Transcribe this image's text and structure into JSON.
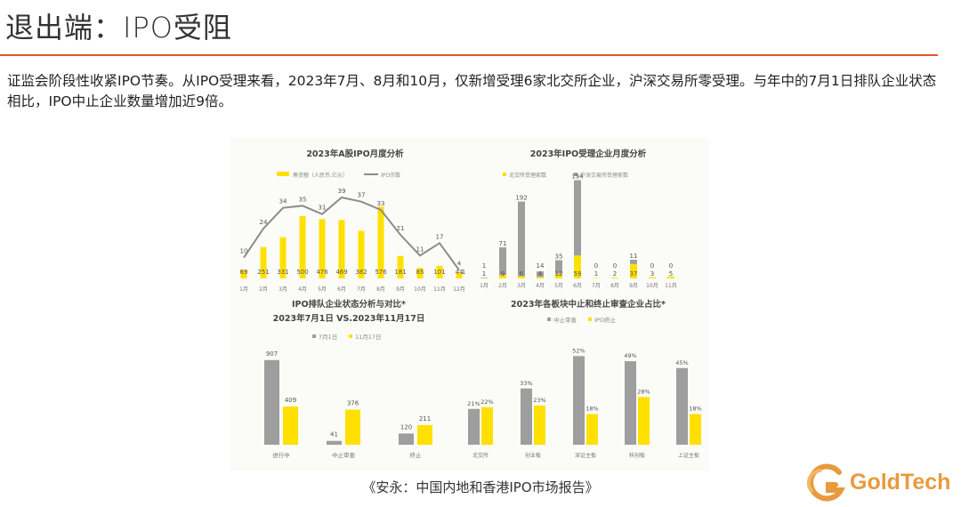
{
  "header": {
    "title": "退出端：IPO受阻",
    "paragraph": "证监会阶段性收紧IPO节奏。从IPO受理来看，2023年7月、8月和10月，仅新增受理6家北交所企业，沪深交易所零受理。与年中的7月1日排队企业状态相比，IPO中止企业数量增加近9倍。"
  },
  "caption": "《安永：中国内地和香港IPO市场报告》",
  "logo": {
    "text": "GoldTech",
    "color": "#e89a3c"
  },
  "colors": {
    "yellow": "#ffe000",
    "gray": "#9e9e9e",
    "line": "#8c8c8c",
    "accent": "#e0582b"
  },
  "chart_data": [
    {
      "type": "bar",
      "title": "2023年A股IPO月度分析",
      "categories": [
        "1月",
        "2月",
        "3月",
        "4月",
        "5月",
        "6月",
        "7月",
        "8月",
        "9月",
        "10月",
        "11月",
        "12月"
      ],
      "series": [
        {
          "name": "筹资额（人民币,亿元）",
          "kind": "bar",
          "values": [
            69,
            251,
            331,
            500,
            476,
            469,
            382,
            576,
            181,
            85,
            101,
            44
          ]
        },
        {
          "name": "IPO宗数",
          "kind": "line",
          "values": [
            10,
            24,
            34,
            35,
            31,
            39,
            37,
            33,
            21,
            11,
            17,
            4
          ]
        }
      ],
      "bar_labels": [
        "69",
        "251",
        "331",
        "500",
        "476",
        "469",
        "382",
        "576",
        "181",
        "85",
        "101",
        "44"
      ],
      "line_labels": [
        "10",
        "24",
        "34",
        "35",
        "31",
        "39",
        "37",
        "33",
        "21",
        "11",
        "17",
        "4"
      ],
      "extra_label": "1",
      "ylim": [
        0,
        600
      ]
    },
    {
      "type": "bar",
      "title": "2023年IPO受理企业月度分析",
      "categories": [
        "1月",
        "2月",
        "3月",
        "4月",
        "5月",
        "6月",
        "7月",
        "8月",
        "9月",
        "10月",
        "11月"
      ],
      "series": [
        {
          "name": "北交所受理家数",
          "values": [
            1,
            9,
            6,
            4,
            12,
            59,
            1,
            2,
            37,
            3,
            5
          ]
        },
        {
          "name": "沪深交易所受理家数",
          "values": [
            1,
            71,
            192,
            14,
            35,
            194,
            0,
            0,
            11,
            0,
            0
          ]
        }
      ],
      "labels_beijing": [
        "1",
        "9",
        "6",
        "4",
        "12",
        "59",
        "1",
        "2",
        "37",
        "3",
        "5"
      ],
      "labels_hs": [
        "1",
        "71",
        "192",
        "14",
        "35",
        "194",
        "0",
        "0",
        "11",
        "0",
        "0"
      ],
      "ylim": [
        0,
        220
      ]
    },
    {
      "type": "bar",
      "title": "IPO排队企业状态分析与对比*",
      "subtitle": "2023年7月1日 VS.2023年11月17日",
      "categories": [
        "进行中",
        "中止审查",
        "终止"
      ],
      "series": [
        {
          "name": "7月1日",
          "values": [
            907,
            41,
            120
          ]
        },
        {
          "name": "11月17日",
          "values": [
            409,
            376,
            211
          ]
        }
      ],
      "labels": [
        [
          "907",
          "409"
        ],
        [
          "41",
          "376"
        ],
        [
          "120",
          "211"
        ]
      ],
      "ylim": [
        0,
        1000
      ]
    },
    {
      "type": "bar",
      "title": "2023年各板块中止和终止审查企业占比*",
      "categories": [
        "北交所",
        "创业板",
        "深证主板",
        "科创板",
        "上证主板"
      ],
      "series": [
        {
          "name": "中止审查",
          "values": [
            21,
            33,
            52,
            49,
            45
          ]
        },
        {
          "name": "IPO终止",
          "values": [
            22,
            23,
            18,
            28,
            18
          ]
        }
      ],
      "labels": [
        [
          "21%",
          "22%"
        ],
        [
          "33%",
          "23%"
        ],
        [
          "52%",
          "18%"
        ],
        [
          "49%",
          "28%"
        ],
        [
          "45%",
          "18%"
        ]
      ],
      "ylim": [
        0,
        60
      ]
    }
  ]
}
